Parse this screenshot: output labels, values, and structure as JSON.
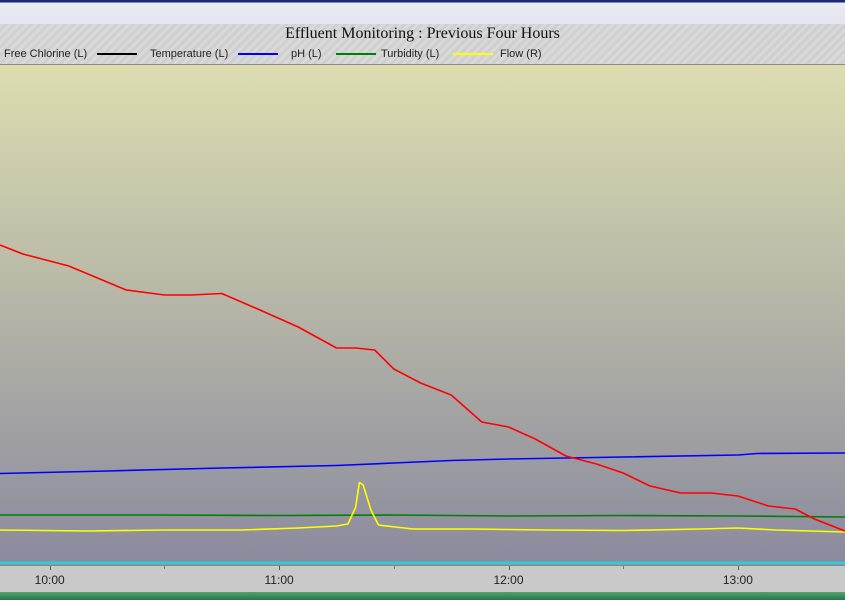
{
  "window": {
    "title": "Effluent Monitoring : Previous Four Hours"
  },
  "colors": {
    "free_chlorine": "#000000",
    "temperature": "#0000ff",
    "ph": "#008000",
    "turbidity": "#ffff00",
    "flow": "#ff0000",
    "plot_top": "#ddddb0",
    "plot_bottom": "#8a8a9e"
  },
  "chart_data": {
    "type": "line",
    "title": "Effluent Monitoring : Previous Four Hours",
    "xlabel": "",
    "ylabel": "",
    "x_axis": {
      "type": "time",
      "range": [
        "09:47",
        "13:28"
      ],
      "tick_labels": [
        "10:00",
        "11:00",
        "12:00",
        "13:00"
      ],
      "tick_values": [
        "10:00",
        "11:00",
        "12:00",
        "13:00"
      ]
    },
    "y_ranges": {
      "left": [
        0,
        100
      ],
      "right": [
        0,
        100
      ]
    },
    "grid": false,
    "legend": "top-left",
    "series": [
      {
        "name": "Free Chlorine (L)",
        "color_key": "free_chlorine",
        "axis": "left",
        "x": [],
        "y": []
      },
      {
        "name": "Temperature (L)",
        "color_key": "temperature",
        "axis": "left",
        "x": [
          "09:47",
          "10:15",
          "10:45",
          "11:15",
          "11:30",
          "11:45",
          "12:00",
          "12:30",
          "13:00",
          "13:05",
          "13:28"
        ],
        "y": [
          18.3,
          18.8,
          19.4,
          19.9,
          20.4,
          20.9,
          21.2,
          21.6,
          22.0,
          22.3,
          22.4
        ]
      },
      {
        "name": "pH (L)",
        "color_key": "ph",
        "axis": "left",
        "x": [
          "09:47",
          "10:30",
          "11:00",
          "11:30",
          "12:00",
          "12:30",
          "13:00",
          "13:28"
        ],
        "y": [
          10.0,
          10.0,
          9.9,
          10.0,
          9.8,
          9.9,
          9.8,
          9.6
        ]
      },
      {
        "name": "Turbidity (L)",
        "color_key": "turbidity",
        "axis": "left",
        "x": [
          "09:47",
          "10:10",
          "10:30",
          "10:50",
          "11:05",
          "11:15",
          "11:18",
          "11:20",
          "11:21",
          "11:22",
          "11:24",
          "11:26",
          "11:35",
          "11:50",
          "12:10",
          "12:30",
          "12:50",
          "13:00",
          "13:10",
          "13:28"
        ],
        "y": [
          7.0,
          6.8,
          7.0,
          7.0,
          7.4,
          7.8,
          8.2,
          11.5,
          16.5,
          16.0,
          11.0,
          8.0,
          7.2,
          7.2,
          7.0,
          6.9,
          7.2,
          7.4,
          7.0,
          6.6
        ]
      },
      {
        "name": "Flow (R)",
        "color_key": "flow",
        "axis": "right",
        "x": [
          "09:47",
          "09:53",
          "10:05",
          "10:20",
          "10:30",
          "10:37",
          "10:45",
          "10:55",
          "11:05",
          "11:15",
          "11:20",
          "11:25",
          "11:30",
          "11:37",
          "11:45",
          "11:53",
          "12:00",
          "12:07",
          "12:15",
          "12:23",
          "12:30",
          "12:37",
          "12:45",
          "12:53",
          "13:00",
          "13:08",
          "13:15",
          "13:20",
          "13:28"
        ],
        "y": [
          64.0,
          62.2,
          59.8,
          55.0,
          54.0,
          54.0,
          54.3,
          51.0,
          47.6,
          43.4,
          43.4,
          43.0,
          39.2,
          36.4,
          34.0,
          28.6,
          27.6,
          25.2,
          21.8,
          20.2,
          18.4,
          15.8,
          14.4,
          14.4,
          13.8,
          11.8,
          11.2,
          9.2,
          6.8
        ]
      }
    ]
  },
  "legend": {
    "items": [
      {
        "label": "Free Chlorine (L)",
        "color_key": "free_chlorine"
      },
      {
        "label": "Temperature (L)",
        "color_key": "temperature"
      },
      {
        "label": "pH (L)",
        "color_key": "ph"
      },
      {
        "label": "Turbidity (L)",
        "color_key": "turbidity"
      },
      {
        "label": "Flow (R)",
        "color_key": "flow"
      }
    ]
  }
}
